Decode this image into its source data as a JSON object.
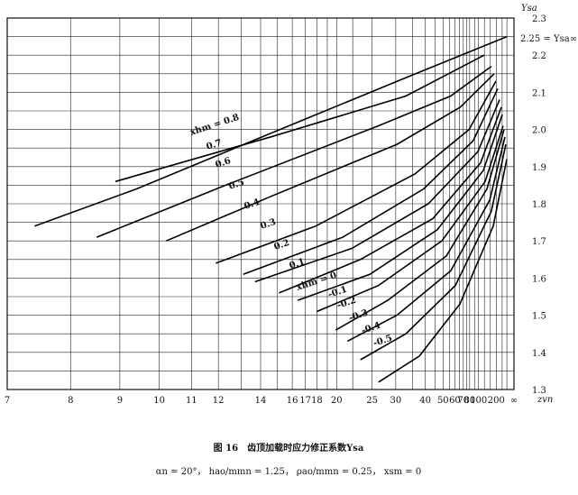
{
  "chart_data": {
    "type": "line",
    "ylabel": "Ysa",
    "xlabel": "zvn",
    "annotation": "2.25 = Ysa∞",
    "caption": "图 16　齿顶加载时应力修正系数Ysa",
    "subcaption": "αn = 20°，  hao/mmn = 1.25，  ρao/mmn = 0.25，  xsm = 0",
    "xscale": "reciprocal",
    "xlim": [
      7,
      "Infinity"
    ],
    "ylim": [
      1.3,
      2.3
    ],
    "xticks": [
      7,
      8,
      9,
      10,
      11,
      12,
      14,
      16,
      17,
      18,
      20,
      25,
      30,
      40,
      50,
      60,
      70,
      80,
      100,
      200,
      {
        "value": "Infinity",
        "label": "∞"
      }
    ],
    "xminor": [
      13,
      15,
      19,
      22,
      35,
      45,
      55,
      65,
      75,
      90,
      120,
      150,
      300,
      500
    ],
    "yticks": [
      1.3,
      1.4,
      1.5,
      1.6,
      1.7,
      1.8,
      1.9,
      {
        "value": 2.0,
        "label": "2.0"
      },
      2.1,
      2.2,
      2.3
    ],
    "yminor": [
      1.35,
      1.45,
      1.55,
      1.65,
      1.75,
      1.85,
      1.95,
      2.05,
      2.15,
      2.25
    ],
    "grid": true,
    "color": "#000000",
    "series": [
      {
        "name": "xhm = 0.8",
        "x": [
          7.4,
          9.4,
          14.6,
          33,
          500
        ],
        "values": [
          1.74,
          1.84,
          1.99,
          2.14,
          2.25
        ]
      },
      {
        "name": "0.7",
        "x": [
          8.9,
          14.6,
          32.8,
          119
        ],
        "values": [
          1.86,
          1.98,
          2.09,
          2.2
        ]
      },
      {
        "name": "0.6",
        "x": [
          8.5,
          12.3,
          26.2,
          56,
          157
        ],
        "values": [
          1.71,
          1.85,
          2.01,
          2.09,
          2.17
        ]
      },
      {
        "name": "0.5",
        "x": [
          10.2,
          14.6,
          30.3,
          66,
          179
        ],
        "values": [
          1.7,
          1.82,
          1.96,
          2.06,
          2.15
        ]
      },
      {
        "name": "0.4",
        "x": [
          11.9,
          17.9,
          35.8,
          79,
          197
        ],
        "values": [
          1.64,
          1.74,
          1.88,
          2.0,
          2.13
        ]
      },
      {
        "name": "0.3",
        "x": [
          13.1,
          20.7,
          39.3,
          87,
          219
        ],
        "values": [
          1.61,
          1.71,
          1.84,
          1.97,
          2.11
        ]
      },
      {
        "name": "0.2",
        "x": [
          13.7,
          21.9,
          41.4,
          98,
          246
        ],
        "values": [
          1.59,
          1.68,
          1.8,
          1.94,
          2.08
        ]
      },
      {
        "name": "0.1",
        "x": [
          15.1,
          23.1,
          43.7,
          106,
          281
        ],
        "values": [
          1.56,
          1.65,
          1.76,
          1.91,
          2.06
        ]
      },
      {
        "name": "xhm = 0",
        "x": [
          16.4,
          24.6,
          46.3,
          116,
          303
        ],
        "values": [
          1.54,
          1.61,
          1.73,
          1.89,
          2.04
        ]
      },
      {
        "name": "-0.1",
        "x": [
          18,
          26.2,
          49.2,
          123,
          328
        ],
        "values": [
          1.51,
          1.58,
          1.7,
          1.86,
          2.01
        ]
      },
      {
        "name": "-0.2",
        "x": [
          19.9,
          28.1,
          52.5,
          131,
          358
        ],
        "values": [
          1.46,
          1.54,
          1.66,
          1.84,
          2.0
        ]
      },
      {
        "name": "-0.3",
        "x": [
          21.3,
          30.3,
          56.2,
          146,
          393
        ],
        "values": [
          1.43,
          1.5,
          1.62,
          1.81,
          1.98
        ]
      },
      {
        "name": "-0.4",
        "x": [
          23.1,
          32.8,
          60.5,
          157,
          437
        ],
        "values": [
          1.38,
          1.45,
          1.58,
          1.78,
          1.96
        ]
      },
      {
        "name": "-0.5",
        "x": [
          26.2,
          37.5,
          65.6,
          171,
          492
        ],
        "values": [
          1.32,
          1.39,
          1.53,
          1.74,
          1.92
        ]
      }
    ]
  }
}
